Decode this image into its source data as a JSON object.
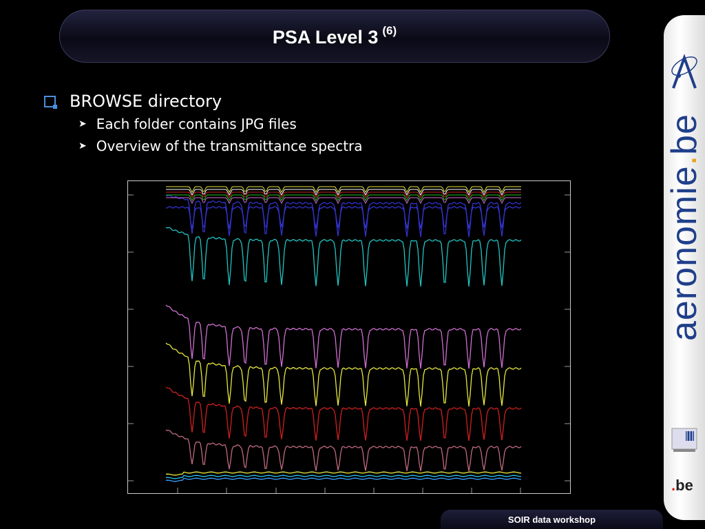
{
  "slide": {
    "title": "PSA Level 3",
    "title_sup": "(6)",
    "bullet": "BROWSE directory",
    "sub_bullets": [
      "Each folder contains JPG files",
      "Overview of the transmittance spectra"
    ],
    "footer": "SOIR data workshop"
  },
  "sidebar": {
    "brand_text": "aeronomie",
    "brand_dot": ".",
    "brand_suffix": "be",
    "be_logo_dot": ".",
    "be_logo_text": "be"
  },
  "colors": {
    "accent_blue": "#4a8ee0",
    "brand_blue": "#1f3f8a",
    "brand_orange": "#e8a21a"
  },
  "icons": [
    "checkbox-bullet-icon",
    "arrow-bullet-icon",
    "aeronomie-logo-icon",
    "institute-building-icon",
    "be-logo-icon"
  ],
  "spectra_colors": [
    "#3333cc",
    "#22c4c4",
    "#d070d0",
    "#e8e840",
    "#d02020",
    "#c06a80",
    "#28c0e8"
  ]
}
